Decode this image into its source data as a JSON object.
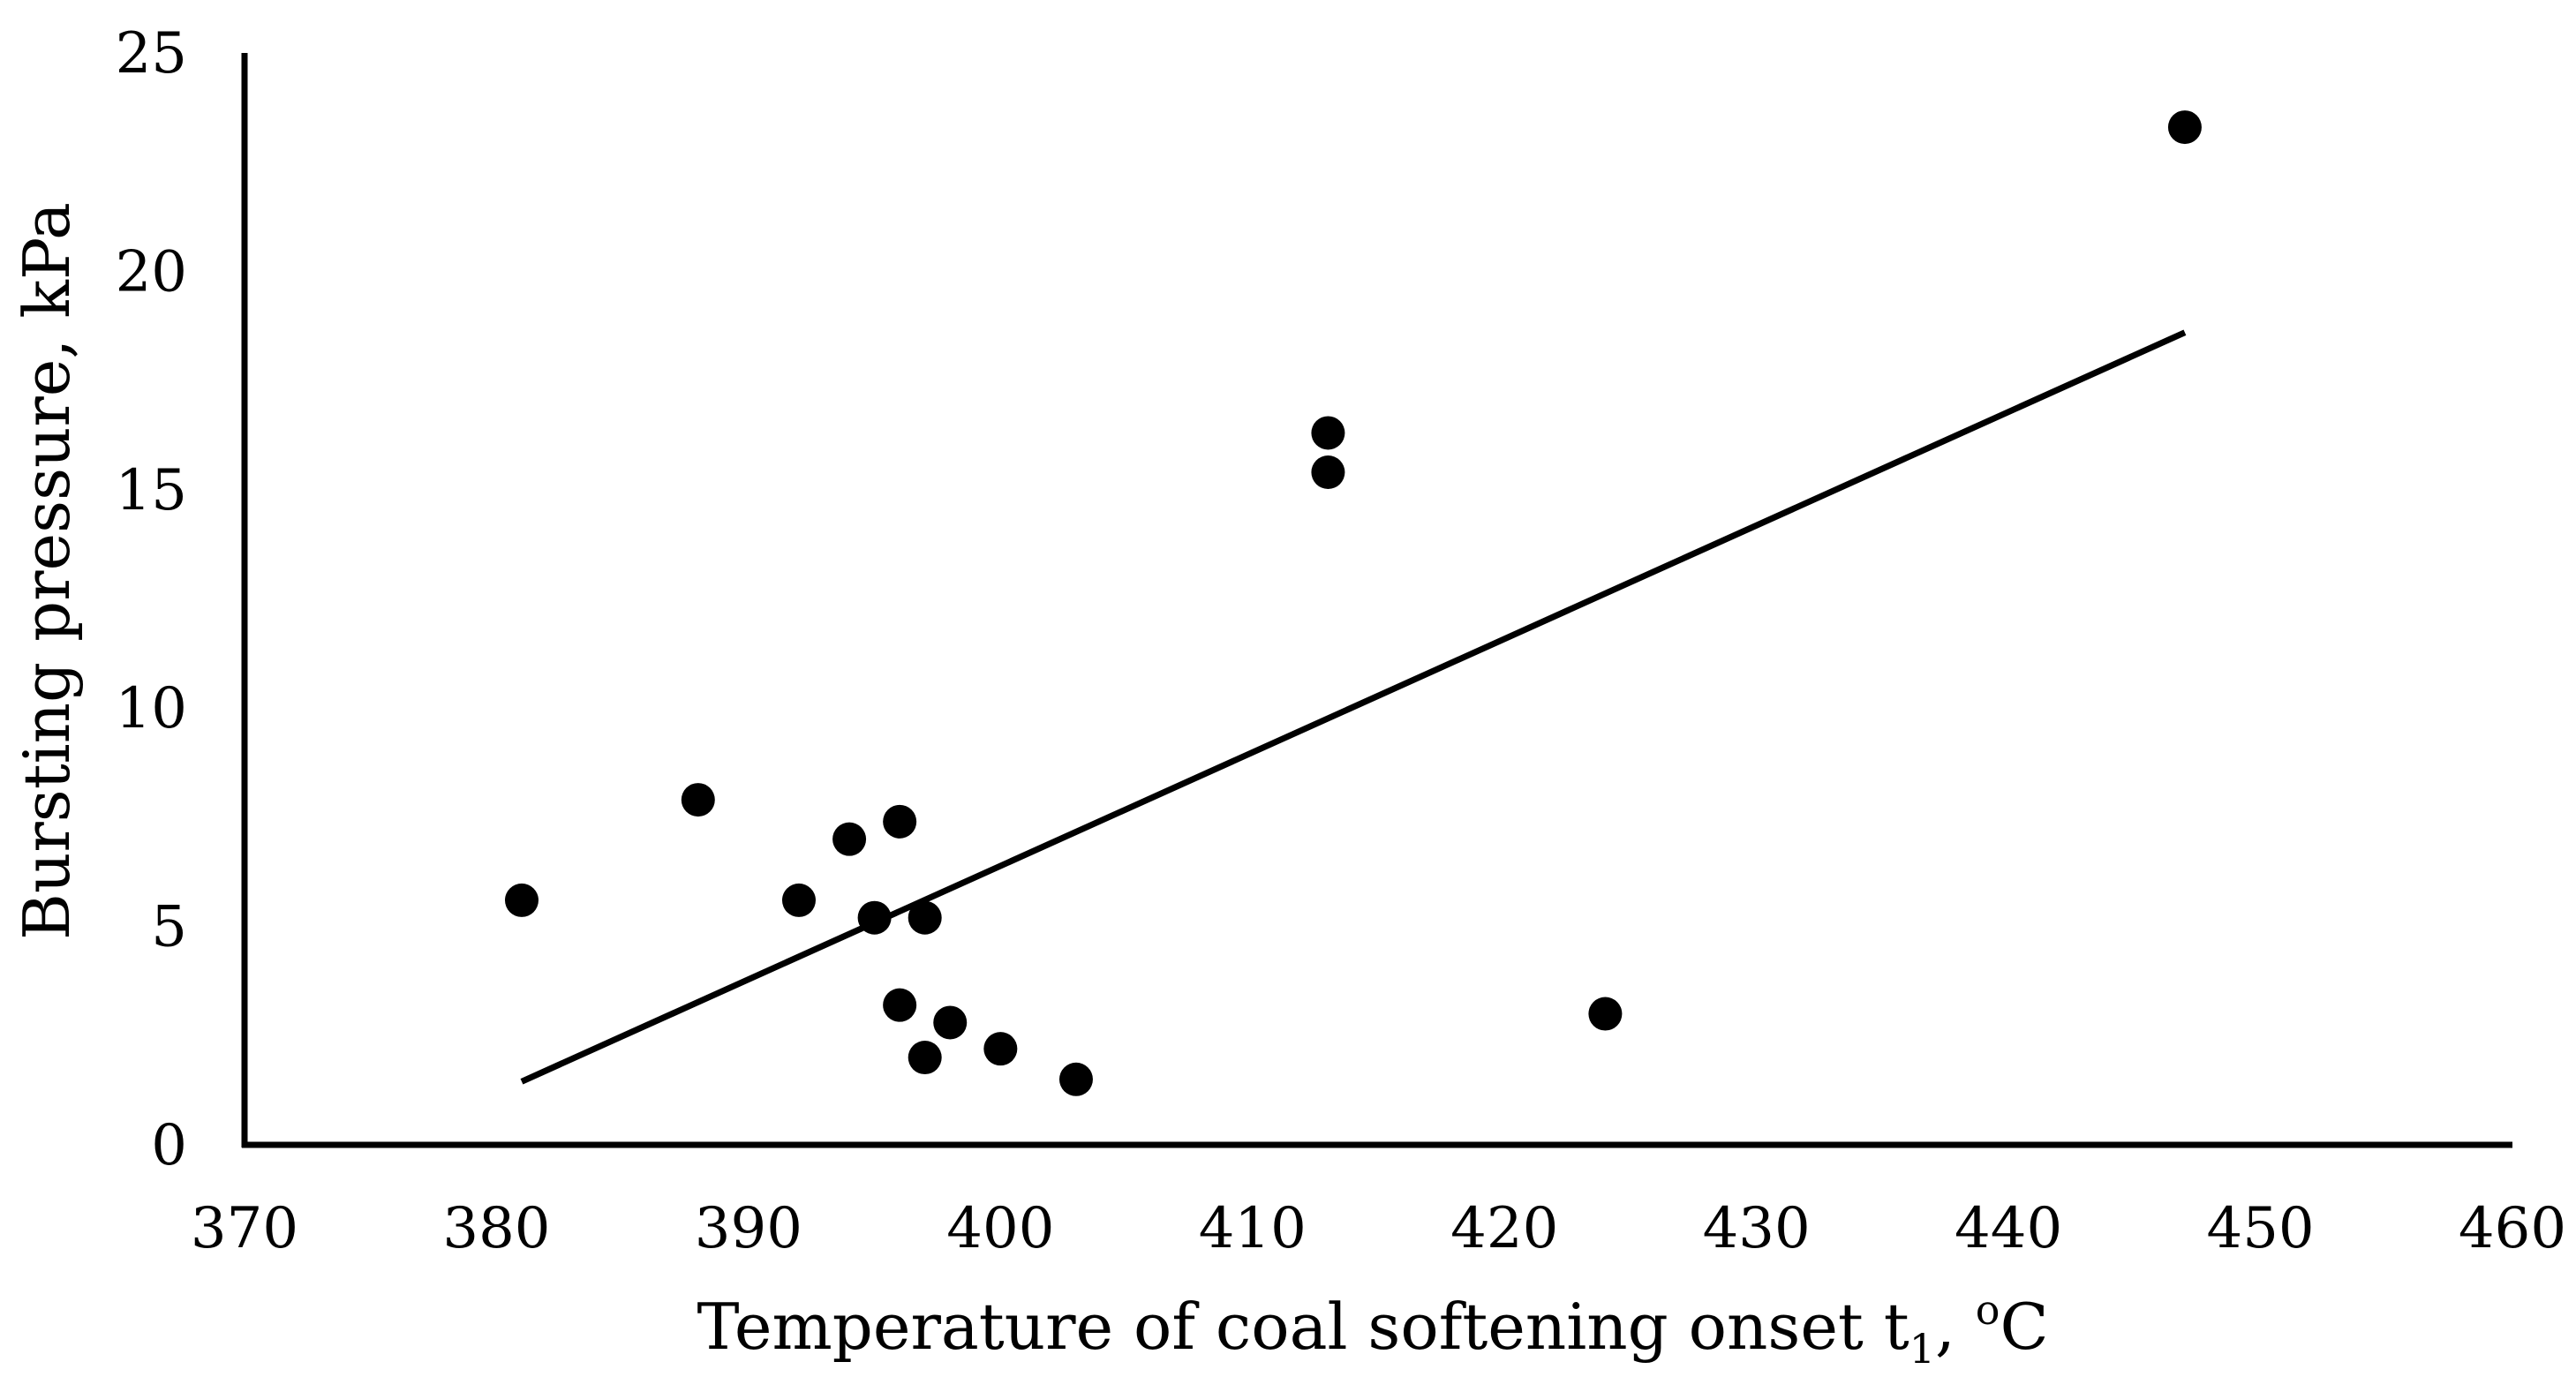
{
  "chart_data": {
    "type": "scatter",
    "title": "",
    "xlabel": {
      "main": "Temperature of coal softening onset t",
      "subscript": "1",
      "sep": ", ",
      "superscript": "o",
      "unit": "C"
    },
    "ylabel": "Bursting pressure, kPa",
    "xlim": [
      370,
      460
    ],
    "ylim": [
      0,
      25
    ],
    "xticks": [
      370,
      380,
      390,
      400,
      410,
      420,
      430,
      440,
      450,
      460
    ],
    "yticks": [
      0,
      5,
      10,
      15,
      20,
      25
    ],
    "grid": false,
    "series": [
      {
        "name": "Bursting pressure",
        "x": [
          381,
          388,
          392,
          394,
          395,
          396,
          396,
          397,
          397,
          398,
          400,
          403,
          413,
          413,
          424,
          447
        ],
        "y": [
          5.6,
          7.9,
          5.6,
          7.0,
          5.2,
          7.4,
          3.2,
          5.2,
          2.0,
          2.8,
          2.2,
          1.5,
          16.3,
          15.4,
          3.0,
          23.3
        ]
      }
    ],
    "trendline": {
      "type": "linear",
      "x": [
        381,
        447
      ],
      "y": [
        1.45,
        18.6
      ]
    },
    "colors": {
      "marker": "#000000",
      "line": "#000000",
      "axis": "#000000"
    }
  }
}
